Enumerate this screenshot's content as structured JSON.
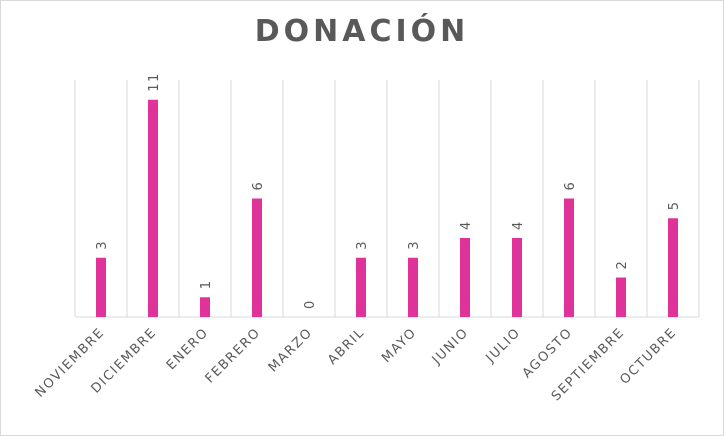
{
  "chart_data": {
    "type": "bar",
    "title": "DONACIÓN",
    "categories": [
      "NOVIEMBRE",
      "DICIEMBRE",
      "ENERO",
      "FEBRERO",
      "MARZO",
      "ABRIL",
      "MAYO",
      "JUNIO",
      "JULIO",
      "AGOSTO",
      "SEPTIEMBRE",
      "OCTUBRE"
    ],
    "values": [
      3,
      11,
      1,
      6,
      0,
      3,
      3,
      4,
      4,
      6,
      2,
      5
    ],
    "ylim": [
      0,
      12
    ],
    "grid": "vertical",
    "legend": "none",
    "bar_color": "#e0339a",
    "grid_color": "#d9d9d9",
    "text_color": "#595959"
  }
}
